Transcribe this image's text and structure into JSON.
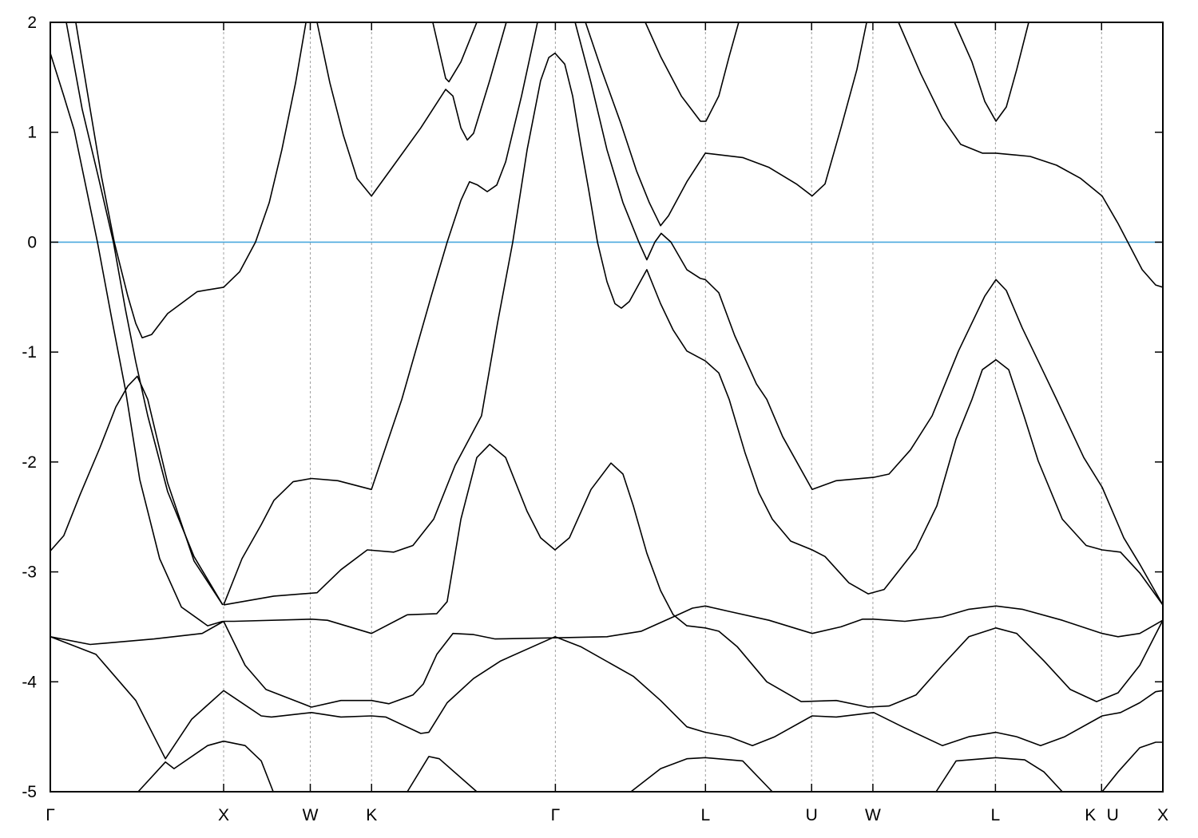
{
  "chart_data": {
    "type": "line",
    "title": "",
    "xlabel": "",
    "ylabel": "",
    "ylim": [
      -5,
      2
    ],
    "xlim": [
      0,
      6.4193
    ],
    "yticks": [
      2,
      1,
      0,
      -1,
      -2,
      -3,
      -4,
      -5
    ],
    "ytick_labels": [
      "2",
      "1",
      "0",
      "-1",
      "-2",
      "-3",
      "-4",
      "-5"
    ],
    "xticks": [
      {
        "k": 0,
        "label": "Γ"
      },
      {
        "k": 1.0,
        "label": "X"
      },
      {
        "k": 1.5,
        "label": "W"
      },
      {
        "k": 1.8536,
        "label": "K"
      },
      {
        "k": 2.9142,
        "label": "Γ"
      },
      {
        "k": 3.7802,
        "label": "L"
      },
      {
        "k": 4.3926,
        "label": "U"
      },
      {
        "k": 4.7462,
        "label": "W"
      },
      {
        "k": 5.4533,
        "label": "L"
      },
      {
        "k": 6.0657,
        "label": "K"
      },
      {
        "k": 6.0657,
        "label": "U"
      },
      {
        "k": 6.4193,
        "label": "X"
      }
    ],
    "fermi_level": 0,
    "colors": {
      "bands": "#000000",
      "fermi_line": "#4aa8de",
      "symmetry_lines": "#a0a0a0"
    },
    "grid": "vertical dashed lines at high-symmetry points",
    "series": [
      {
        "k": [
          0,
          0.078,
          0.138,
          0.272,
          0.355,
          0.433,
          0.516,
          0.631,
          0.756,
          0.908,
          0.995
        ],
        "E": [
          1.72,
          1.33,
          1.02,
          0,
          -0.7,
          -1.34,
          -2.16,
          -2.88,
          -3.32,
          -3.49,
          -3.45
        ]
      },
      {
        "k": [
          0,
          0.078,
          0.171,
          0.286,
          0.378,
          0.447,
          0.502,
          0.562,
          0.677,
          0.829,
          0.995
        ],
        "E": [
          -2.81,
          -2.67,
          -2.3,
          -1.87,
          -1.5,
          -1.31,
          -1.22,
          -1.43,
          -2.19,
          -2.9,
          -3.3
        ]
      },
      {
        "k": [
          0.092,
          0.184,
          0.276,
          0.364,
          0.433,
          0.493,
          0.562,
          0.677,
          0.829,
          0.995
        ],
        "E": [
          2.0,
          1.21,
          0.6,
          0,
          -0.61,
          -1.09,
          -1.58,
          -2.27,
          -2.86,
          -3.3
        ]
      },
      {
        "k": [
          0.147,
          0.23,
          0.295,
          0.369,
          0.447,
          0.493,
          0.53,
          0.585,
          0.677,
          0.848,
          1.0,
          1.092,
          1.184,
          1.263,
          1.336,
          1.415,
          1.475
        ],
        "E": [
          2.0,
          1.21,
          0.6,
          0,
          -0.49,
          -0.74,
          -0.87,
          -0.84,
          -0.65,
          -0.45,
          -0.41,
          -0.27,
          0,
          0.36,
          0.84,
          1.45,
          2.0
        ]
      },
      {
        "k": [
          0,
          0.263,
          0.493,
          0.664,
          0.816,
          1.0,
          1.217,
          1.276,
          1.507,
          1.677,
          1.853,
          1.935,
          2.138,
          2.184,
          2.29,
          2.442,
          2.599,
          2.912,
          3.06,
          3.364,
          3.521,
          3.673,
          3.779,
          3.917,
          4.051,
          4.18,
          4.396,
          4.535,
          4.751,
          4.917,
          5.147,
          5.3,
          5.456,
          5.576,
          5.714,
          5.853,
          6.069,
          6.175,
          6.286,
          6.378,
          6.419
        ],
        "E": [
          -3.59,
          -3.75,
          -4.17,
          -4.7,
          -4.34,
          -4.08,
          -4.31,
          -4.32,
          -4.28,
          -4.32,
          -4.31,
          -4.32,
          -4.47,
          -4.46,
          -4.19,
          -3.97,
          -3.81,
          -3.59,
          -3.68,
          -3.95,
          -4.17,
          -4.41,
          -4.46,
          -4.5,
          -4.58,
          -4.5,
          -4.31,
          -4.32,
          -4.28,
          -4.41,
          -4.58,
          -4.5,
          -4.46,
          -4.5,
          -4.58,
          -4.5,
          -4.31,
          -4.28,
          -4.19,
          -4.09,
          -4.08
        ]
      },
      {
        "k": [
          0,
          0.23,
          0.599,
          0.876,
          1.0,
          1.06,
          1.507,
          1.599,
          1.853,
          2.06,
          2.23,
          2.29,
          2.369,
          2.461,
          2.535,
          2.627,
          2.751,
          2.829,
          2.912,
          2.995,
          3.12,
          3.235,
          3.304,
          3.364,
          3.442,
          3.521,
          3.594,
          3.673,
          3.779,
          3.857,
          3.963,
          4.134,
          4.332,
          4.535,
          4.719,
          4.839,
          4.995,
          5.147,
          5.3,
          5.456,
          5.576,
          5.733,
          5.885,
          6.037,
          6.161,
          6.286,
          6.419
        ],
        "E": [
          -3.59,
          -3.66,
          -3.61,
          -3.56,
          -3.45,
          -3.45,
          -3.43,
          -3.44,
          -3.56,
          -3.39,
          -3.38,
          -3.27,
          -2.52,
          -1.96,
          -1.84,
          -1.96,
          -2.45,
          -2.69,
          -2.8,
          -2.69,
          -2.25,
          -2.01,
          -2.11,
          -2.4,
          -2.83,
          -3.17,
          -3.39,
          -3.49,
          -3.51,
          -3.54,
          -3.68,
          -4.0,
          -4.18,
          -4.17,
          -4.23,
          -4.22,
          -4.12,
          -3.85,
          -3.59,
          -3.51,
          -3.56,
          -3.81,
          -4.07,
          -4.18,
          -4.1,
          -3.85,
          -3.44
        ]
      },
      {
        "k": [
          1.0,
          1.124,
          1.244,
          1.507,
          1.677,
          1.853,
          1.954,
          2.092,
          2.152,
          2.23,
          2.323,
          2.442,
          2.567,
          2.912,
          3.212,
          3.41,
          3.594,
          3.705,
          3.779,
          3.917,
          4.147,
          4.396,
          4.562,
          4.687,
          4.751,
          4.931,
          5.147,
          5.3,
          5.456,
          5.608,
          5.839,
          6.069,
          6.161,
          6.286,
          6.419
        ],
        "E": [
          -3.45,
          -3.85,
          -4.07,
          -4.23,
          -4.17,
          -4.17,
          -4.2,
          -4.12,
          -4.02,
          -3.75,
          -3.56,
          -3.57,
          -3.61,
          -3.6,
          -3.59,
          -3.54,
          -3.41,
          -3.33,
          -3.31,
          -3.36,
          -3.44,
          -3.56,
          -3.5,
          -3.43,
          -3.43,
          -3.45,
          -3.41,
          -3.34,
          -3.31,
          -3.34,
          -3.44,
          -3.56,
          -3.59,
          -3.56,
          -3.44
        ]
      },
      {
        "k": [
          0.507,
          0.664,
          0.714,
          0.908,
          1.0,
          1.124,
          1.217,
          1.286
        ],
        "E": [
          -5.0,
          -4.73,
          -4.79,
          -4.58,
          -4.54,
          -4.58,
          -4.72,
          -5.0
        ]
      },
      {
        "k": [
          2.06,
          2.184,
          2.244,
          2.461
        ],
        "E": [
          -5.0,
          -4.68,
          -4.7,
          -5.0
        ]
      },
      {
        "k": [
          3.35,
          3.521,
          3.673,
          3.779,
          3.995,
          4.166
        ],
        "E": [
          -5.0,
          -4.79,
          -4.7,
          -4.69,
          -4.72,
          -5.0
        ]
      },
      {
        "k": [
          5.111,
          5.226,
          5.456,
          5.622,
          5.733,
          5.839
        ],
        "E": [
          -5.0,
          -4.72,
          -4.69,
          -4.71,
          -4.82,
          -5.0
        ]
      },
      {
        "k": [
          6.069,
          6.161,
          6.286,
          6.378,
          6.419
        ],
        "E": [
          -5.0,
          -4.82,
          -4.6,
          -4.55,
          -4.55
        ]
      },
      {
        "k": [
          1.0,
          1.106,
          1.217,
          1.29,
          1.401,
          1.507,
          1.659,
          1.853,
          2.028,
          2.198,
          2.29,
          2.369,
          2.419,
          2.465,
          2.521,
          2.576,
          2.627,
          2.719,
          2.811
        ],
        "E": [
          -3.3,
          -2.88,
          -2.57,
          -2.35,
          -2.18,
          -2.15,
          -2.17,
          -2.25,
          -1.43,
          -0.49,
          0,
          0.38,
          0.55,
          0.52,
          0.46,
          0.52,
          0.73,
          1.33,
          2.0
        ]
      },
      {
        "k": [
          1.0,
          1.29,
          1.539,
          1.677,
          1.829,
          1.982,
          2.092,
          2.212,
          2.336,
          2.488,
          2.581,
          2.668,
          2.751,
          2.829,
          2.876,
          2.912,
          2.968,
          3.014,
          3.06,
          3.106,
          3.157,
          3.212,
          3.258,
          3.295,
          3.341,
          3.442,
          3.521,
          3.594,
          3.673,
          3.779,
          3.857,
          3.917,
          4.009,
          4.088,
          4.166,
          4.272,
          4.396,
          4.47,
          4.608,
          4.719,
          4.811,
          4.995,
          5.115,
          5.226,
          5.318,
          5.378,
          5.456,
          5.53,
          5.618,
          5.7,
          5.839,
          5.977,
          6.069,
          6.175,
          6.286,
          6.419
        ],
        "E": [
          -3.3,
          -3.22,
          -3.19,
          -2.98,
          -2.8,
          -2.82,
          -2.76,
          -2.52,
          -2.03,
          -1.58,
          -0.73,
          0,
          0.84,
          1.47,
          1.68,
          1.72,
          1.62,
          1.33,
          0.89,
          0.48,
          0,
          -0.36,
          -0.56,
          -0.6,
          -0.54,
          -0.25,
          -0.56,
          -0.8,
          -0.99,
          -1.08,
          -1.19,
          -1.43,
          -1.92,
          -2.28,
          -2.52,
          -2.72,
          -2.8,
          -2.86,
          -3.1,
          -3.2,
          -3.16,
          -2.79,
          -2.4,
          -1.79,
          -1.43,
          -1.16,
          -1.07,
          -1.16,
          -1.58,
          -1.99,
          -2.52,
          -2.76,
          -2.8,
          -2.82,
          -3.01,
          -3.3
        ]
      },
      {
        "k": [
          1.539,
          1.613,
          1.691,
          1.77,
          1.853,
          1.982,
          2.138,
          2.281,
          2.323,
          2.369,
          2.406,
          2.442,
          2.535,
          2.631
        ],
        "E": [
          2.0,
          1.45,
          0.97,
          0.58,
          0.42,
          0.7,
          1.04,
          1.39,
          1.33,
          1.04,
          0.93,
          0.99,
          1.47,
          2.0
        ]
      },
      {
        "k": [
          2.207,
          2.281,
          2.3,
          2.369,
          2.461
        ],
        "E": [
          2.0,
          1.49,
          1.46,
          1.64,
          2.0
        ]
      },
      {
        "k": [
          3.028,
          3.12,
          3.212,
          3.304,
          3.396,
          3.442,
          3.488,
          3.525,
          3.581,
          3.673,
          3.751,
          3.779,
          3.857,
          3.949,
          4.074,
          4.134,
          4.226,
          4.396,
          4.535,
          4.751,
          4.839,
          4.963,
          5.088,
          5.24,
          5.392,
          5.456,
          5.516,
          5.608,
          5.733,
          5.806,
          5.963,
          6.069,
          6.194,
          6.286,
          6.419
        ],
        "E": [
          2.0,
          1.45,
          0.84,
          0.36,
          0,
          -0.16,
          0,
          0.08,
          0,
          -0.25,
          -0.33,
          -0.34,
          -0.46,
          -0.85,
          -1.29,
          -1.43,
          -1.77,
          -2.25,
          -2.17,
          -2.14,
          -2.11,
          -1.89,
          -1.58,
          -0.99,
          -0.49,
          -0.34,
          -0.44,
          -0.78,
          -1.19,
          -1.43,
          -1.96,
          -2.23,
          -2.69,
          -2.93,
          -3.3
        ]
      },
      {
        "k": [
          3.088,
          3.18,
          3.29,
          3.382,
          3.456,
          3.521,
          3.567,
          3.673,
          3.779,
          3.995,
          4.147,
          4.304,
          4.396,
          4.47,
          4.562,
          4.654,
          4.71
        ],
        "E": [
          2.0,
          1.57,
          1.09,
          0.65,
          0.36,
          0.15,
          0.24,
          0.55,
          0.81,
          0.77,
          0.68,
          0.53,
          0.42,
          0.53,
          1.04,
          1.57,
          2.0
        ]
      },
      {
        "k": [
          4.894,
          5.023,
          5.147,
          5.253,
          5.378,
          5.456,
          5.654,
          5.806,
          5.945,
          6.069,
          6.161,
          6.217,
          6.3,
          6.378,
          6.419
        ],
        "E": [
          2.0,
          1.53,
          1.13,
          0.89,
          0.81,
          0.81,
          0.78,
          0.7,
          0.58,
          0.42,
          0.17,
          0,
          -0.25,
          -0.39,
          -0.41
        ]
      },
      {
        "k": [
          3.433,
          3.521,
          3.641,
          3.751,
          3.783,
          3.857,
          3.917,
          3.972
        ],
        "E": [
          2.0,
          1.69,
          1.33,
          1.1,
          1.1,
          1.33,
          1.69,
          2.0
        ]
      },
      {
        "k": [
          5.217,
          5.318,
          5.392,
          5.456,
          5.516,
          5.576,
          5.645
        ],
        "E": [
          2.0,
          1.64,
          1.28,
          1.1,
          1.23,
          1.57,
          2.0
        ]
      }
    ]
  }
}
